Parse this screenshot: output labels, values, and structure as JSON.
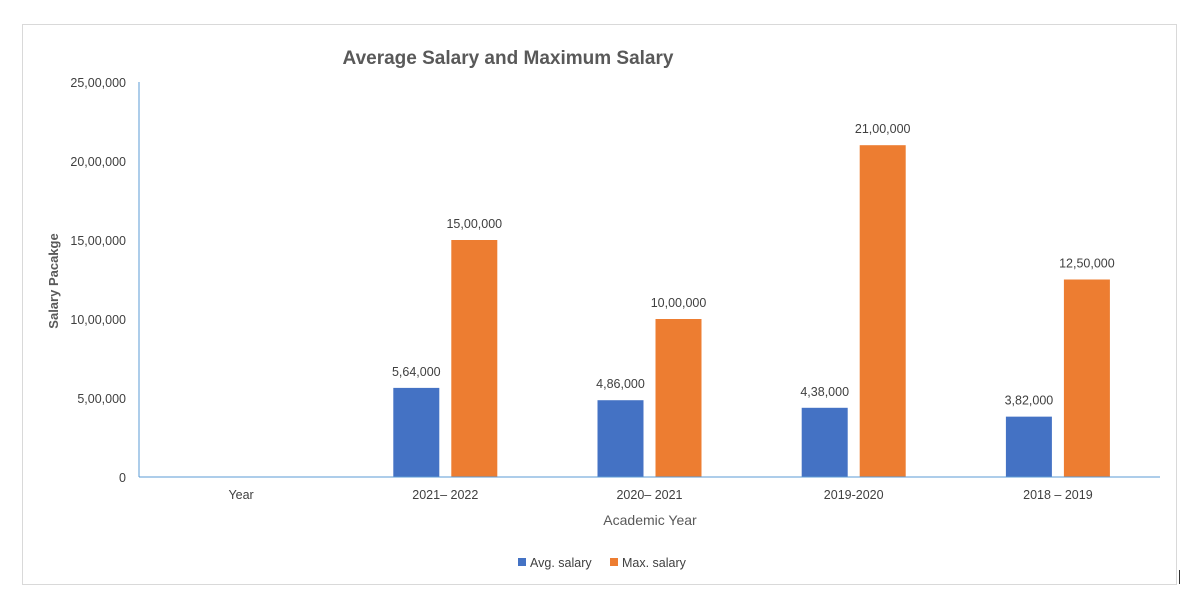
{
  "chart_data": {
    "type": "bar",
    "title": "Average Salary and Maximum Salary",
    "xlabel": "Academic Year",
    "ylabel": "Salary Pacakge",
    "categories": [
      "Year",
      "2021– 2022",
      "2020– 2021",
      "2019-2020",
      "2018 – 2019"
    ],
    "series": [
      {
        "name": "Avg. salary",
        "color": "#4472C4",
        "values": [
          null,
          564000,
          486000,
          438000,
          382000
        ],
        "labels": [
          "",
          "5,64,000",
          "4,86,000",
          "4,38,000",
          "3,82,000"
        ]
      },
      {
        "name": "Max. salary",
        "color": "#ED7D31",
        "values": [
          null,
          1500000,
          1000000,
          2100000,
          1250000
        ],
        "labels": [
          "",
          "15,00,000",
          "10,00,000",
          "21,00,000",
          "12,50,000"
        ]
      }
    ],
    "ylim": [
      0,
      2500000
    ],
    "yticks": [
      0,
      500000,
      1000000,
      1500000,
      2000000,
      2500000
    ],
    "ytick_labels": [
      "0",
      "5,00,000",
      "10,00,000",
      "15,00,000",
      "20,00,000",
      "25,00,000"
    ],
    "grid": false,
    "legend_position": "bottom"
  }
}
